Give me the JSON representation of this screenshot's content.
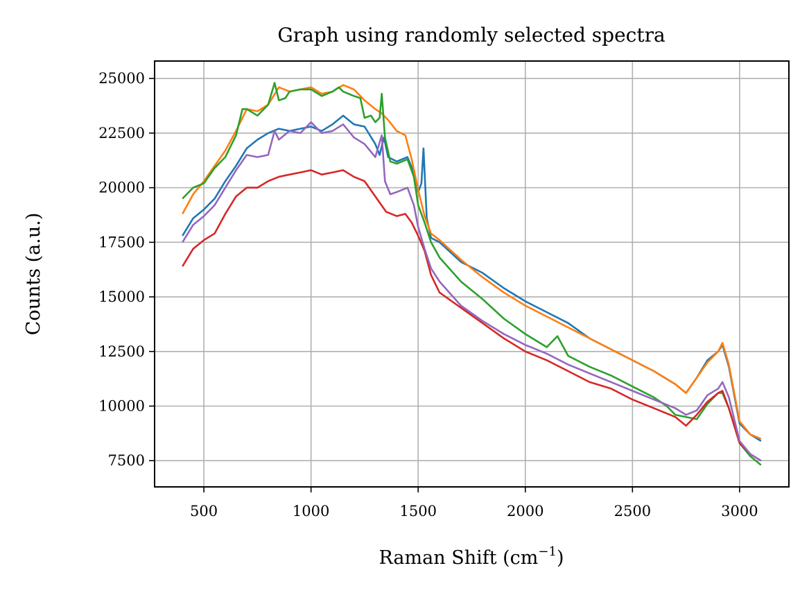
{
  "chart_data": {
    "type": "line",
    "title": "Graph using randomly selected spectra",
    "xlabel_main": "Raman Shift (cm",
    "xlabel_sup": "−1",
    "xlabel_end": ")",
    "ylabel": "Counts (a.u.)",
    "xlim": [
      270,
      3230
    ],
    "ylim": [
      6300,
      25800
    ],
    "xticks": [
      500,
      1000,
      1500,
      2000,
      2500,
      3000
    ],
    "yticks": [
      7500,
      10000,
      12500,
      15000,
      17500,
      20000,
      22500,
      25000
    ],
    "grid": true,
    "colors": [
      "#1f77b4",
      "#ff7f0e",
      "#2ca02c",
      "#d62728",
      "#9467bd"
    ],
    "series": [
      {
        "color": "#1f77b4",
        "x": [
          400,
          450,
          500,
          550,
          600,
          650,
          700,
          750,
          800,
          850,
          900,
          950,
          1000,
          1050,
          1100,
          1150,
          1200,
          1250,
          1300,
          1320,
          1340,
          1360,
          1400,
          1450,
          1480,
          1500,
          1515,
          1525,
          1540,
          1560,
          1600,
          1700,
          1800,
          1900,
          2000,
          2100,
          2200,
          2300,
          2400,
          2500,
          2600,
          2700,
          2750,
          2800,
          2850,
          2900,
          2920,
          2950,
          3000,
          3050,
          3100
        ],
        "y": [
          17800,
          18600,
          19000,
          19500,
          20300,
          21000,
          21800,
          22200,
          22500,
          22700,
          22600,
          22700,
          22800,
          22600,
          22900,
          23300,
          22900,
          22800,
          22000,
          21500,
          22300,
          21400,
          21200,
          21400,
          20700,
          19800,
          20200,
          21800,
          18600,
          17700,
          17500,
          16600,
          16100,
          15400,
          14800,
          14300,
          13800,
          13100,
          12600,
          12100,
          11600,
          11000,
          10600,
          11300,
          12100,
          12500,
          12800,
          11800,
          9200,
          8700,
          8400
        ]
      },
      {
        "color": "#ff7f0e",
        "x": [
          400,
          450,
          500,
          550,
          600,
          650,
          700,
          750,
          800,
          850,
          900,
          950,
          1000,
          1050,
          1100,
          1150,
          1200,
          1250,
          1300,
          1330,
          1360,
          1400,
          1440,
          1470,
          1500,
          1530,
          1560,
          1600,
          1700,
          1800,
          1900,
          2000,
          2100,
          2200,
          2300,
          2400,
          2500,
          2600,
          2700,
          2750,
          2800,
          2850,
          2900,
          2920,
          2950,
          3000,
          3050,
          3100
        ],
        "y": [
          18800,
          19700,
          20300,
          21000,
          21700,
          22600,
          23600,
          23500,
          23800,
          24600,
          24400,
          24500,
          24600,
          24300,
          24400,
          24700,
          24500,
          24000,
          23600,
          23400,
          23100,
          22600,
          22400,
          21300,
          19900,
          18700,
          17900,
          17600,
          16700,
          15900,
          15200,
          14600,
          14100,
          13600,
          13100,
          12600,
          12100,
          11600,
          11000,
          10600,
          11300,
          12000,
          12500,
          12900,
          11900,
          9300,
          8700,
          8500
        ]
      },
      {
        "color": "#2ca02c",
        "x": [
          400,
          450,
          500,
          550,
          600,
          650,
          680,
          700,
          750,
          800,
          830,
          850,
          880,
          900,
          950,
          1000,
          1050,
          1100,
          1130,
          1150,
          1200,
          1230,
          1250,
          1280,
          1300,
          1320,
          1330,
          1345,
          1370,
          1400,
          1450,
          1480,
          1500,
          1530,
          1560,
          1600,
          1700,
          1800,
          1900,
          2000,
          2100,
          2150,
          2200,
          2300,
          2400,
          2500,
          2600,
          2660,
          2700,
          2800,
          2850,
          2900,
          2920,
          2950,
          3000,
          3050,
          3100
        ],
        "y": [
          19500,
          20000,
          20200,
          20900,
          21400,
          22400,
          23600,
          23600,
          23300,
          23800,
          24800,
          24000,
          24100,
          24400,
          24500,
          24500,
          24200,
          24400,
          24600,
          24400,
          24200,
          24100,
          23200,
          23300,
          23000,
          23200,
          24300,
          22300,
          21200,
          21100,
          21300,
          20500,
          19200,
          18400,
          17500,
          16800,
          15700,
          14900,
          14000,
          13300,
          12700,
          13200,
          12300,
          11800,
          11400,
          10900,
          10400,
          10000,
          9600,
          9400,
          10100,
          10600,
          10600,
          9900,
          8300,
          7700,
          7300
        ]
      },
      {
        "color": "#d62728",
        "x": [
          400,
          450,
          500,
          550,
          600,
          650,
          700,
          750,
          800,
          850,
          900,
          950,
          1000,
          1050,
          1100,
          1150,
          1200,
          1250,
          1300,
          1350,
          1400,
          1440,
          1470,
          1500,
          1530,
          1560,
          1600,
          1700,
          1800,
          1900,
          2000,
          2100,
          2200,
          2300,
          2400,
          2500,
          2600,
          2700,
          2750,
          2800,
          2850,
          2900,
          2920,
          2950,
          3000,
          3050,
          3100
        ],
        "y": [
          16400,
          17200,
          17600,
          17900,
          18800,
          19600,
          20000,
          20000,
          20300,
          20500,
          20600,
          20700,
          20800,
          20600,
          20700,
          20800,
          20500,
          20300,
          19600,
          18900,
          18700,
          18800,
          18400,
          17800,
          17100,
          16000,
          15200,
          14500,
          13800,
          13100,
          12500,
          12100,
          11600,
          11100,
          10800,
          10300,
          9900,
          9500,
          9100,
          9600,
          10200,
          10600,
          10700,
          9900,
          8300,
          7800,
          7500
        ]
      },
      {
        "color": "#9467bd",
        "x": [
          400,
          450,
          500,
          550,
          600,
          650,
          700,
          750,
          800,
          830,
          850,
          900,
          950,
          1000,
          1050,
          1100,
          1150,
          1200,
          1250,
          1300,
          1330,
          1345,
          1370,
          1400,
          1450,
          1480,
          1500,
          1530,
          1560,
          1600,
          1700,
          1800,
          1900,
          2000,
          2100,
          2200,
          2300,
          2400,
          2500,
          2600,
          2700,
          2750,
          2800,
          2850,
          2900,
          2920,
          2950,
          3000,
          3050,
          3100
        ],
        "y": [
          17500,
          18300,
          18700,
          19200,
          20000,
          20800,
          21500,
          21400,
          21500,
          22600,
          22200,
          22600,
          22500,
          23000,
          22500,
          22600,
          22900,
          22300,
          22000,
          21400,
          22400,
          20300,
          19700,
          19800,
          20000,
          19200,
          18200,
          17200,
          16300,
          15700,
          14600,
          13900,
          13300,
          12800,
          12400,
          11900,
          11500,
          11100,
          10700,
          10300,
          9900,
          9600,
          9800,
          10500,
          10800,
          11100,
          10400,
          8400,
          7800,
          7500
        ]
      }
    ]
  }
}
